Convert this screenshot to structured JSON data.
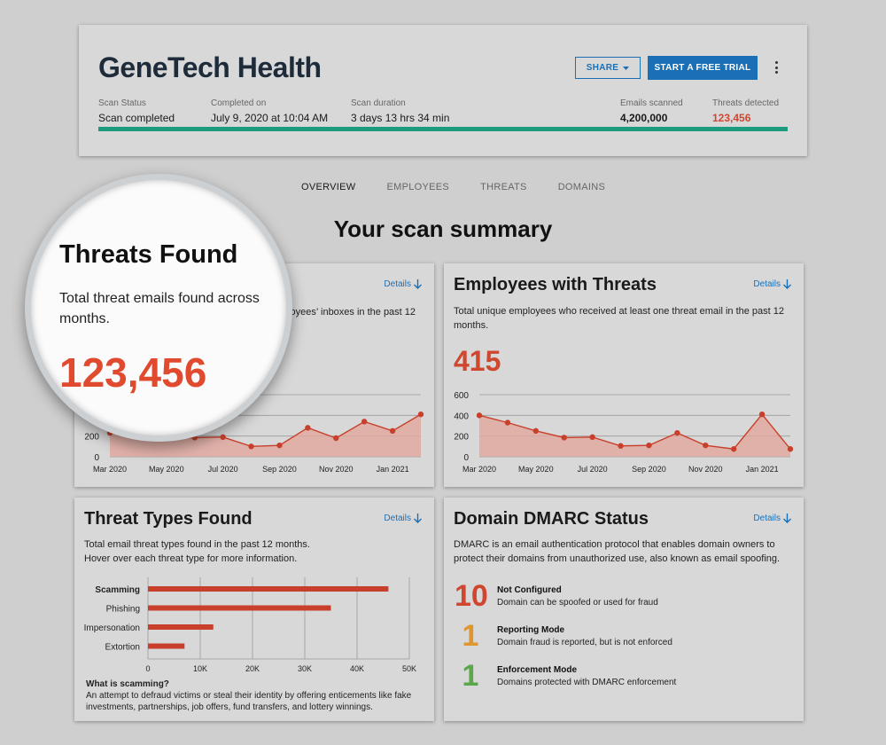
{
  "header": {
    "company": "GeneTech Health",
    "share_label": "SHARE",
    "trial_label": "START A FREE TRIAL",
    "stats": {
      "scan_status": {
        "label": "Scan Status",
        "value": "Scan completed"
      },
      "completed_on": {
        "label": "Completed on",
        "value": "July 9, 2020 at 10:04 AM"
      },
      "scan_duration": {
        "label": "Scan duration",
        "value": "3 days 13 hrs 34 min"
      },
      "emails_scanned": {
        "label": "Emails scanned",
        "value": "4,200,000"
      },
      "threats_detected": {
        "label": "Threats detected",
        "value": "123,456"
      }
    },
    "progress": 1.0
  },
  "tabs": [
    "OVERVIEW",
    "EMPLOYEES",
    "THREATS",
    "DOMAINS"
  ],
  "active_tab": "OVERVIEW",
  "section_title": "Your scan summary",
  "details_label": "Details",
  "threats_found": {
    "title": "Threats Found",
    "desc_visible": "ployees’ inboxes in the past 12",
    "desc_magnified_line1": "Total threat emails found across",
    "desc_magnified_line2": "months.",
    "value": "123,456"
  },
  "employees_threats": {
    "title": "Employees with Threats",
    "desc_line1": "Total unique employees who received at least one threat email in the past 12",
    "desc_line2": "months.",
    "value": "415"
  },
  "threat_types": {
    "title": "Threat Types Found",
    "desc_line1": "Total email threat types found in the past 12 months.",
    "desc_line2": "Hover over each threat type for more information.",
    "note_title": "What is scamming?",
    "note_body": "An attempt to defraud victims or steal their identity by offering enticements like fake investments, partnerships, job offers, fund transfers, and lottery winnings."
  },
  "dmarc": {
    "title": "Domain DMARC Status",
    "desc_line1": "DMARC is an email authentication protocol that enables domain owners to",
    "desc_line2": "protect their domains from unauthorized use, also known as email spoofing.",
    "rows": [
      {
        "count": "10",
        "title": "Not Configured",
        "sub": "Domain can be spoofed or used for fraud",
        "color": "#d0472f"
      },
      {
        "count": "1",
        "title": "Reporting Mode",
        "sub": "Domain fraud is reported, but is not enforced",
        "color": "#e0962e"
      },
      {
        "count": "1",
        "title": "Enforcement Mode",
        "sub": "Domains protected with DMARC enforcement",
        "color": "#5aa84a"
      }
    ]
  },
  "chart_data": [
    {
      "type": "area",
      "id": "threats-over-time",
      "x_tick_labels": [
        "Mar 2020",
        "May 2020",
        "Jul 2020",
        "Sep 2020",
        "Nov 2020",
        "Jan 2021"
      ],
      "y_tick_labels": [
        "0",
        "200"
      ],
      "ylim": [
        0,
        600
      ],
      "y_ticks": [
        0,
        200,
        400,
        600
      ],
      "values": [
        230,
        200,
        180,
        185,
        190,
        100,
        110,
        280,
        180,
        340,
        250,
        410
      ],
      "color": "#c8402b",
      "grid": true
    },
    {
      "type": "area",
      "id": "employees-over-time",
      "x_tick_labels": [
        "Mar 2020",
        "May 2020",
        "Jul 2020",
        "Sep 2020",
        "Nov 2020",
        "Jan 2021"
      ],
      "y_tick_labels": [
        "0",
        "200",
        "400",
        "600"
      ],
      "ylim": [
        0,
        600
      ],
      "y_ticks": [
        0,
        200,
        400,
        600
      ],
      "values": [
        400,
        330,
        250,
        185,
        190,
        105,
        110,
        230,
        110,
        75,
        410,
        75
      ],
      "color": "#c8402b",
      "grid": true
    },
    {
      "type": "bar",
      "orientation": "horizontal",
      "id": "threat-types",
      "categories": [
        "Scamming",
        "Phishing",
        "Impersonation",
        "Extortion"
      ],
      "values": [
        46000,
        35000,
        12500,
        7000
      ],
      "xlim": [
        0,
        50000
      ],
      "x_ticks": [
        0,
        10000,
        20000,
        30000,
        40000,
        50000
      ],
      "x_tick_labels": [
        "0",
        "10K",
        "20K",
        "30K",
        "40K",
        "50K"
      ],
      "color": "#c8402b",
      "highlighted": "Scamming"
    }
  ]
}
